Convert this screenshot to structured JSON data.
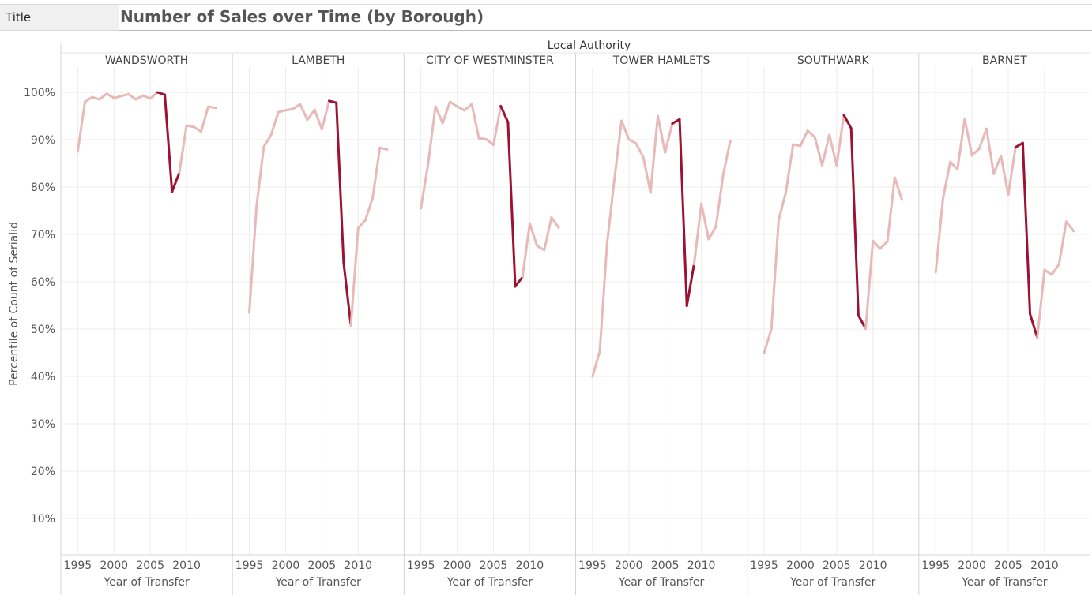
{
  "header": {
    "tag_label": "Title",
    "title": "Number of Sales over Time (by Borough)"
  },
  "chart_data": {
    "type": "line",
    "title": "Number of Sales over Time (by Borough)",
    "column_header": "Local Authority",
    "xlabel": "Year of Transfer",
    "ylabel": "Percentile of Count of Serialid",
    "x_ticks": [
      1995,
      2000,
      2005,
      2010
    ],
    "y_ticks": [
      "10%",
      "20%",
      "30%",
      "40%",
      "50%",
      "60%",
      "70%",
      "80%",
      "90%",
      "100%"
    ],
    "ylim": [
      0,
      105
    ],
    "xlim": [
      1993,
      2016
    ],
    "grid": true,
    "colors": {
      "light": "#e8b9b9",
      "dark": "#9c1230",
      "grid": "#ececec",
      "divider": "#d4d4d4",
      "text": "#555555"
    },
    "highlight_years": [
      2006,
      2009
    ],
    "panels": [
      {
        "name": "WANDSWORTH",
        "x": [
          1995,
          1996,
          1997,
          1998,
          1999,
          2000,
          2001,
          2002,
          2003,
          2004,
          2005,
          2006,
          2007,
          2008,
          2009,
          2010,
          2011,
          2012,
          2013,
          2014
        ],
        "y": [
          87.5,
          98,
          99,
          98.5,
          99.7,
          98.8,
          99.2,
          99.6,
          98.5,
          99.3,
          98.7,
          100,
          99.5,
          79,
          83,
          93,
          92.7,
          91.7,
          97,
          96.7
        ]
      },
      {
        "name": "LAMBETH",
        "x": [
          1995,
          1996,
          1997,
          1998,
          1999,
          2000,
          2001,
          2002,
          2003,
          2004,
          2005,
          2006,
          2007,
          2008,
          2009,
          2010,
          2011,
          2012,
          2013,
          2014
        ],
        "y": [
          53.5,
          76,
          88.5,
          91,
          95.8,
          96.2,
          96.5,
          97.5,
          94.2,
          96.3,
          92.2,
          98.2,
          97.8,
          64,
          50.8,
          71.3,
          73,
          77.7,
          88.3,
          87.9
        ]
      },
      {
        "name": "CITY OF WESTMINSTER",
        "x": [
          1995,
          1996,
          1997,
          1998,
          1999,
          2000,
          2001,
          2002,
          2003,
          2004,
          2005,
          2006,
          2007,
          2008,
          2009,
          2010,
          2011,
          2012,
          2013,
          2014
        ],
        "y": [
          75.5,
          85,
          97,
          93.5,
          98,
          97,
          96.2,
          97.5,
          90.3,
          90.1,
          88.9,
          97.1,
          93.7,
          59,
          61,
          72.3,
          67.6,
          66.7,
          73.6,
          71.4
        ]
      },
      {
        "name": "TOWER HAMLETS",
        "x": [
          1995,
          1996,
          1997,
          1998,
          1999,
          2000,
          2001,
          2002,
          2003,
          2004,
          2005,
          2006,
          2007,
          2008,
          2009,
          2010,
          2011,
          2012,
          2013,
          2014
        ],
        "y": [
          40,
          45.3,
          67.9,
          81.4,
          94,
          90.1,
          89.2,
          86.3,
          78.8,
          95,
          87.3,
          93.4,
          94.3,
          54.9,
          63.7,
          76.5,
          69,
          71.6,
          82.5,
          89.8
        ]
      },
      {
        "name": "SOUTHWARK",
        "x": [
          1995,
          1996,
          1997,
          1998,
          1999,
          2000,
          2001,
          2002,
          2003,
          2004,
          2005,
          2006,
          2007,
          2008,
          2009,
          2010,
          2011,
          2012,
          2013,
          2014
        ],
        "y": [
          45,
          50,
          73,
          78.9,
          89,
          88.7,
          91.9,
          90.5,
          84.6,
          91,
          84.6,
          95.2,
          92.4,
          52.9,
          50.1,
          68.6,
          67,
          68.5,
          82,
          77.3
        ]
      },
      {
        "name": "BARNET",
        "x": [
          1995,
          1996,
          1997,
          1998,
          1999,
          2000,
          2001,
          2002,
          2003,
          2004,
          2005,
          2006,
          2007,
          2008,
          2009,
          2010,
          2011,
          2012,
          2013,
          2014
        ],
        "y": [
          62,
          77.5,
          85.3,
          83.8,
          94.4,
          86.7,
          88.1,
          92.3,
          82.8,
          86.6,
          78.3,
          88.4,
          89.3,
          53.2,
          48.2,
          62.5,
          61.5,
          63.7,
          72.7,
          70.7
        ]
      }
    ]
  }
}
